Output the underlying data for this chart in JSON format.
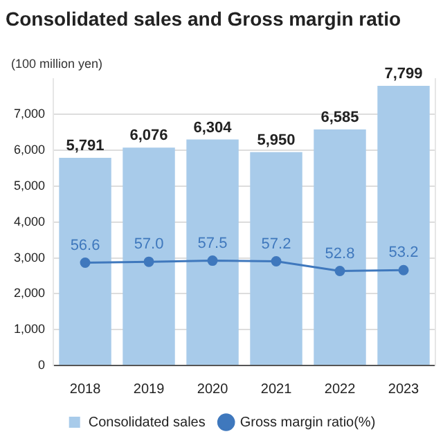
{
  "chart_data": {
    "type": "bar",
    "title": "Consolidated sales and Gross margin ratio",
    "ylabel": "(100 million yen)",
    "categories": [
      "2018",
      "2019",
      "2020",
      "2021",
      "2022",
      "2023"
    ],
    "series": [
      {
        "name": "Consolidated sales",
        "color": "#a8cbea",
        "values": [
          5791,
          6076,
          6304,
          5950,
          6585,
          7799
        ],
        "value_labels": [
          "5,791",
          "6,076",
          "6,304",
          "5,950",
          "6,585",
          "7,799"
        ]
      },
      {
        "type": "line",
        "name": "Gross margin ratio(%)",
        "color": "#3f78bd",
        "axis": "y2",
        "values": [
          56.6,
          57.0,
          57.5,
          57.2,
          52.8,
          53.2
        ],
        "value_labels": [
          "56.6",
          "57.0",
          "57.5",
          "57.2",
          "52.8",
          "53.2"
        ]
      }
    ],
    "ylim": [
      0,
      8000
    ],
    "yticks": [
      0,
      {
        "value": 1000,
        "label": "1,000"
      },
      {
        "value": 2000,
        "label": "2,000"
      },
      {
        "value": 3000,
        "label": "3,000"
      },
      {
        "value": 4000,
        "label": "4,000"
      },
      {
        "value": 5000,
        "label": "5,000"
      },
      {
        "value": 6000,
        "label": "6,000"
      },
      {
        "value": 7000,
        "label": "7,000"
      }
    ],
    "y2lim": [
      10,
      140
    ],
    "grid": "y",
    "legend": "bottom",
    "marker": "circle"
  }
}
